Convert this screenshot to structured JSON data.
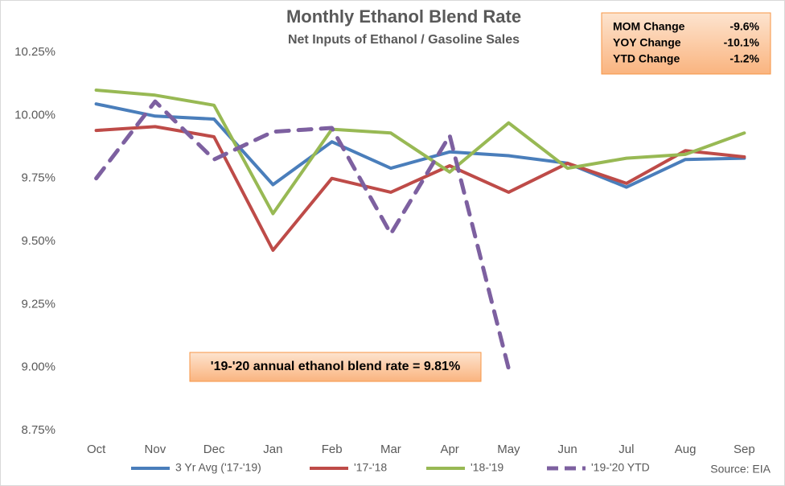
{
  "chart_data": {
    "type": "line",
    "title": "Monthly Ethanol Blend Rate",
    "subtitle": "Net Inputs of Ethanol / Gasoline Sales",
    "categories": [
      "Oct",
      "Nov",
      "Dec",
      "Jan",
      "Feb",
      "Mar",
      "Apr",
      "May",
      "Jun",
      "Jul",
      "Aug",
      "Sep"
    ],
    "series": [
      {
        "name": "3 Yr Avg ('17-'19)",
        "color": "#4a7ebb",
        "dashed": false,
        "values": [
          10.045,
          9.997,
          9.985,
          9.725,
          9.895,
          9.79,
          9.855,
          9.84,
          9.81,
          9.715,
          9.825,
          9.83
        ]
      },
      {
        "name": "'17-'18",
        "color": "#be4b48",
        "dashed": false,
        "values": [
          9.94,
          9.955,
          9.915,
          9.465,
          9.75,
          9.695,
          9.8,
          9.695,
          9.81,
          9.73,
          9.86,
          9.835
        ]
      },
      {
        "name": "'18-'19",
        "color": "#98b954",
        "dashed": false,
        "values": [
          10.1,
          10.08,
          10.04,
          9.61,
          9.945,
          9.93,
          9.775,
          9.97,
          9.79,
          9.83,
          9.845,
          9.93
        ]
      },
      {
        "name": "'19-'20 YTD",
        "color": "#7d60a0",
        "dashed": true,
        "values": [
          9.75,
          10.055,
          9.825,
          9.935,
          9.95,
          9.53,
          9.92,
          8.995,
          null,
          null,
          null,
          null
        ]
      }
    ],
    "ylim": [
      8.75,
      10.25
    ],
    "yticks": [
      {
        "value": 8.75,
        "label": "8.75%"
      },
      {
        "value": 9.0,
        "label": "9.00%"
      },
      {
        "value": 9.25,
        "label": "9.25%"
      },
      {
        "value": 9.5,
        "label": "9.50%"
      },
      {
        "value": 9.75,
        "label": "9.75%"
      },
      {
        "value": 10.0,
        "label": "10.00%"
      },
      {
        "value": 10.25,
        "label": "10.25%"
      }
    ],
    "grid": false,
    "legend": "bottom",
    "stats": [
      {
        "label": "MOM Change",
        "value": "-9.6%"
      },
      {
        "label": "YOY Change",
        "value": "-10.1%"
      },
      {
        "label": "YTD Change",
        "value": "-1.2%"
      }
    ],
    "annotation": "'19-'20 annual ethanol blend rate = 9.81%",
    "source": "Source: EIA"
  }
}
